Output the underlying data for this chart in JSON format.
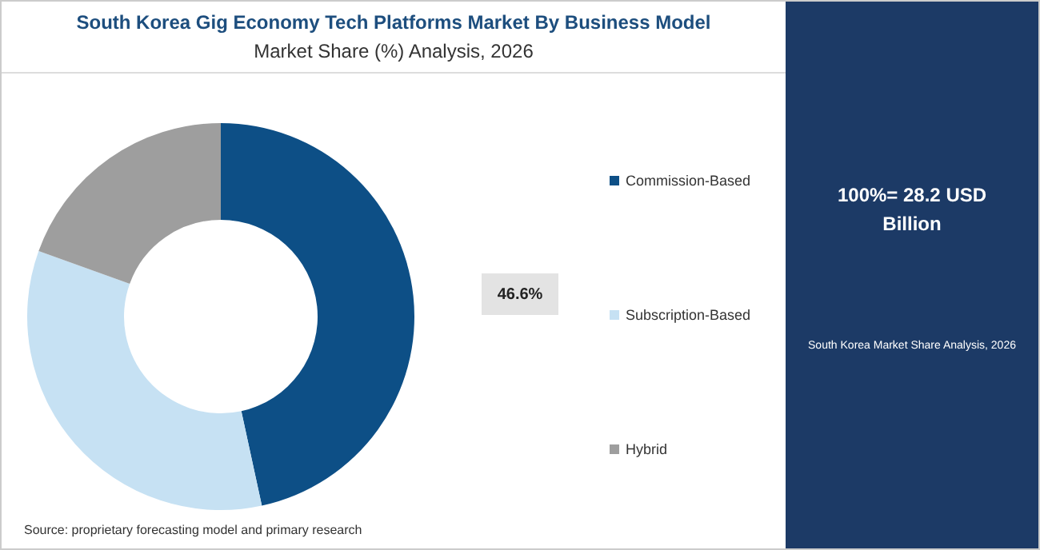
{
  "chart_data": {
    "type": "donut",
    "title": "South Korea Gig Economy Tech Platforms Market By Business Model",
    "subtitle": "Market Share (%) Analysis, 2026",
    "categories": [
      "Commission-Based",
      "Subscription-Based",
      "Hybrid"
    ],
    "values": [
      46.6,
      33.9,
      19.5
    ],
    "colors": [
      "#0d4f86",
      "#c6e1f3",
      "#9e9e9e"
    ],
    "value_labels": [
      "46.6%",
      null,
      null
    ],
    "legend": "right",
    "annotations": [
      "100%= 28.2 USD Billion",
      "South Korea Market Share Analysis, 2026",
      "Source: proprietary forecasting model and primary research"
    ]
  }
}
